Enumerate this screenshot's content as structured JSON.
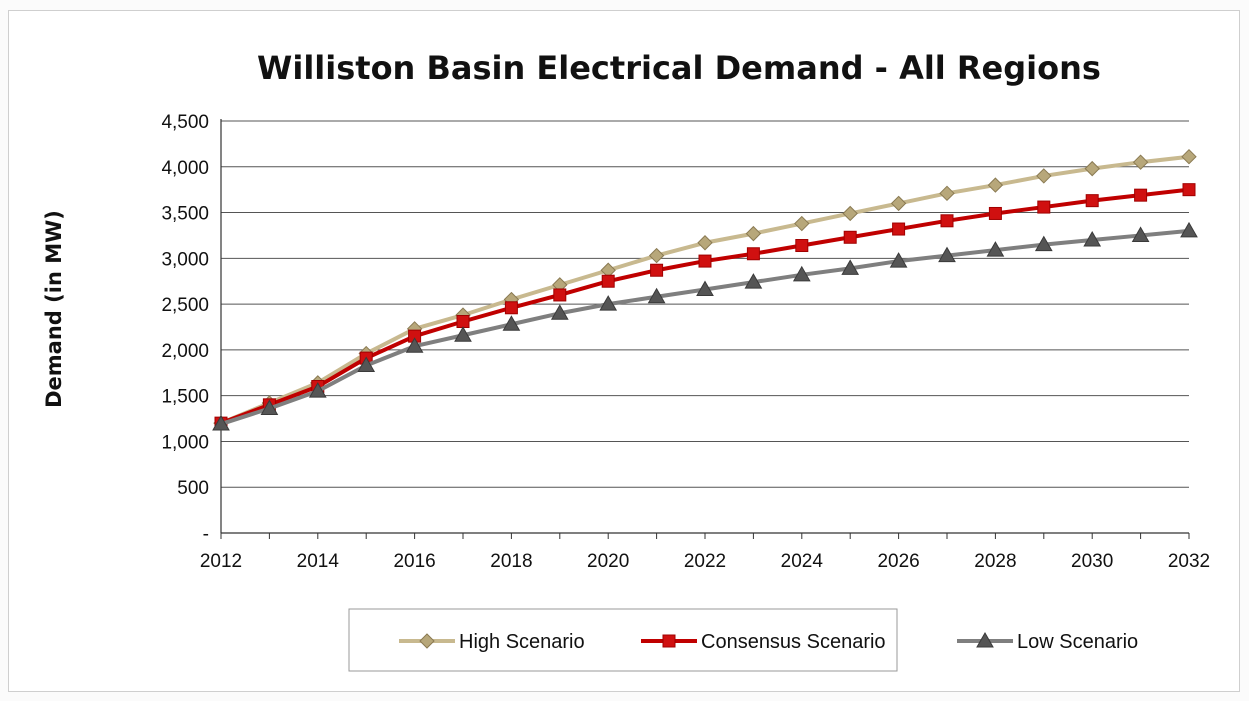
{
  "chart_data": {
    "type": "line",
    "title": "Williston Basin Electrical Demand - All Regions",
    "xlabel": "",
    "ylabel": "Demand (in MW)",
    "ylim": [
      0,
      4500
    ],
    "yticks": [
      0,
      500,
      1000,
      1500,
      2000,
      2500,
      3000,
      3500,
      4000,
      4500
    ],
    "ytick_labels": [
      "-",
      "500",
      "1,000",
      "1,500",
      "2,000",
      "2,500",
      "3,000",
      "3,500",
      "4,000",
      "4,500"
    ],
    "xlim": [
      2012,
      2032
    ],
    "xtick_labels": [
      "2012",
      "2014",
      "2016",
      "2018",
      "2020",
      "2022",
      "2024",
      "2026",
      "2028",
      "2030",
      "2032"
    ],
    "grid": true,
    "legend_position": "bottom",
    "x": [
      2012,
      2013,
      2014,
      2015,
      2016,
      2017,
      2018,
      2019,
      2020,
      2021,
      2022,
      2023,
      2024,
      2025,
      2026,
      2027,
      2028,
      2029,
      2030,
      2031,
      2032
    ],
    "series": [
      {
        "name": "High Scenario",
        "color": "#c8b98f",
        "marker": "diamond",
        "values": [
          1200,
          1420,
          1640,
          1960,
          2230,
          2380,
          2550,
          2710,
          2870,
          3030,
          3170,
          3270,
          3380,
          3490,
          3600,
          3710,
          3800,
          3900,
          3980,
          4050,
          4110
        ]
      },
      {
        "name": "Consensus Scenario",
        "color": "#c00000",
        "marker": "square",
        "values": [
          1200,
          1400,
          1600,
          1910,
          2150,
          2310,
          2460,
          2600,
          2750,
          2870,
          2970,
          3050,
          3140,
          3230,
          3320,
          3410,
          3490,
          3560,
          3630,
          3690,
          3750
        ]
      },
      {
        "name": "Low Scenario",
        "color": "#7f7f7f",
        "marker": "triangle",
        "values": [
          1190,
          1360,
          1550,
          1830,
          2040,
          2160,
          2280,
          2400,
          2500,
          2580,
          2660,
          2740,
          2820,
          2890,
          2970,
          3030,
          3090,
          3150,
          3200,
          3250,
          3300
        ]
      }
    ]
  }
}
